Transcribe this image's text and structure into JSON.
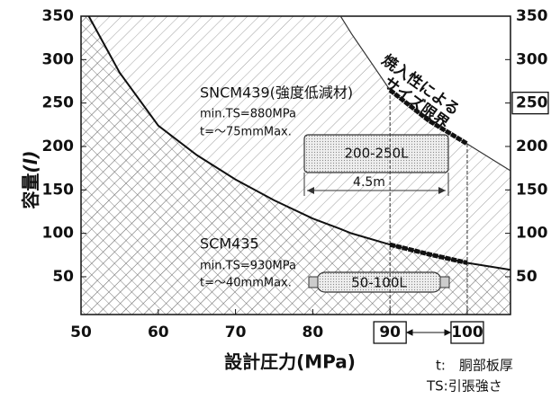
{
  "chart_data": {
    "type": "line",
    "x_label": "設計圧力(MPa)",
    "y_label_main": "容量",
    "y_label_unit": "(l)",
    "x": [
      51,
      55,
      60,
      65,
      70,
      75,
      80,
      83.6,
      85,
      90,
      95,
      100,
      105.6
    ],
    "series": [
      {
        "name": "SCM435",
        "color": "#111111",
        "values": [
          350,
          285,
          224,
          190,
          162,
          138,
          117,
          105,
          100,
          87,
          76,
          66,
          58
        ]
      },
      {
        "name": "SNCM439(強度低減材)",
        "color": "#333333",
        "values": [
          null,
          null,
          null,
          null,
          null,
          null,
          null,
          350,
          330,
          265,
          230,
          203,
          172
        ]
      }
    ],
    "xlim": [
      50,
      105.6
    ],
    "ylim": [
      6.5,
      350
    ],
    "xticks": [
      50,
      60,
      70,
      80,
      90,
      100
    ],
    "yticks": [
      50,
      100,
      150,
      200,
      250,
      300,
      350
    ],
    "highlight_range": [
      90,
      100
    ],
    "highlight_y": 250,
    "annotations": {
      "limit_1": "焼入性による",
      "limit_2": "サイズ限界",
      "sncm_ts": "min.TS=880MPa",
      "sncm_t": "t=～75mmMax.",
      "scm_ts": "min.TS=930MPa",
      "scm_t": "t=～40mmMax."
    },
    "vessels": [
      {
        "label": "200-250L",
        "length": "4.5m"
      },
      {
        "label": "50-100L"
      }
    ],
    "notes": [
      "t:　胴部板厚",
      "TS:引張強さ"
    ]
  }
}
